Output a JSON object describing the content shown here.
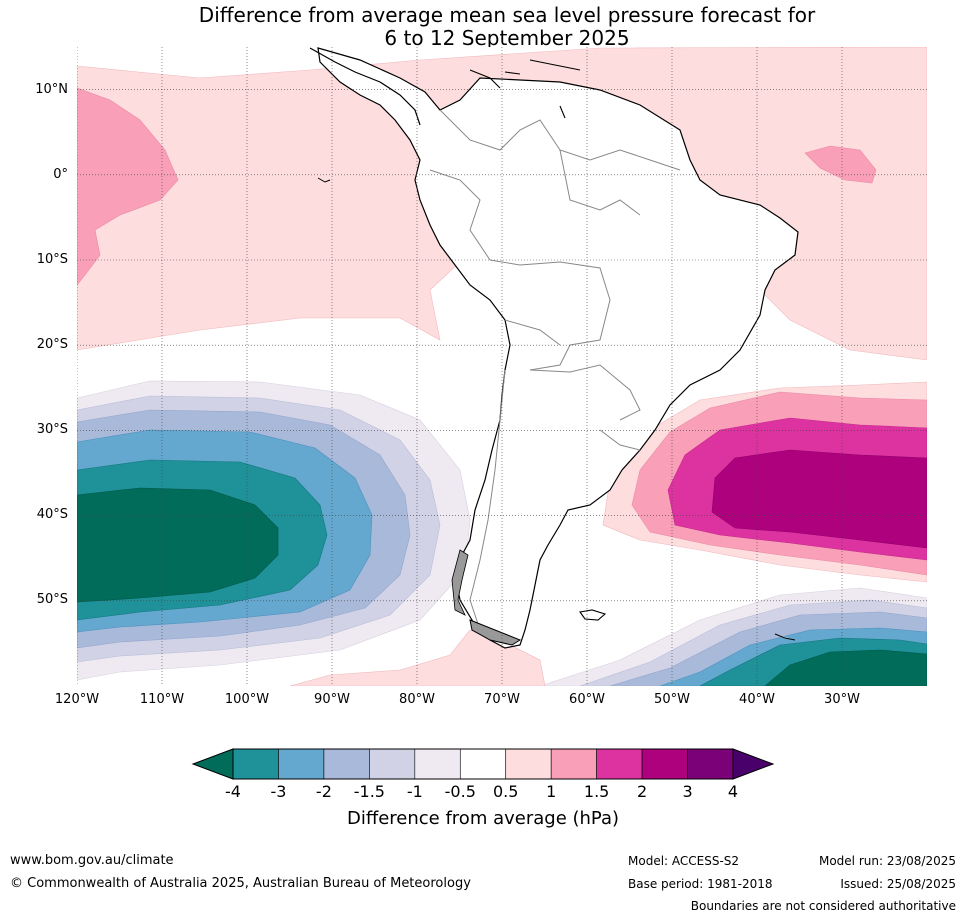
{
  "title": {
    "line1": "Difference from average mean sea level pressure forecast for",
    "line2": "6 to 12 September 2025"
  },
  "map": {
    "lat_labels": [
      "10°N",
      "0°",
      "10°S",
      "20°S",
      "30°S",
      "40°S",
      "50°S"
    ],
    "lon_labels": [
      "120°W",
      "110°W",
      "100°W",
      "90°W",
      "80°W",
      "70°W",
      "60°W",
      "50°W",
      "40°W",
      "30°W"
    ],
    "lat_range": [
      -60,
      15
    ],
    "lon_range": [
      -120,
      -20
    ]
  },
  "colorbar": {
    "ticks": [
      "-4",
      "-3",
      "-2",
      "-1.5",
      "-1",
      "-0.5",
      "0.5",
      "1",
      "1.5",
      "2",
      "3",
      "4"
    ],
    "colors": [
      "#1e9199",
      "#64a7cf",
      "#a9b9d9",
      "#d1d2e6",
      "#efeaf2",
      "#ffffff",
      "#fdddde",
      "#f99fb8",
      "#dd33a0",
      "#ae017e",
      "#7a0177"
    ],
    "under_color": "#016c59",
    "over_color": "#49006a",
    "label": "Difference from average (hPa)"
  },
  "footer": {
    "website": "www.bom.gov.au/climate",
    "copyright": "© Commonwealth of Australia 2025, Australian Bureau of Meteorology",
    "model": "Model: ACCESS-S2",
    "base_period": "Base period: 1981-2018",
    "model_run": "Model run: 23/08/2025",
    "issued": "Issued: 25/08/2025",
    "disclaimer": "Boundaries are not considered authoritative"
  }
}
